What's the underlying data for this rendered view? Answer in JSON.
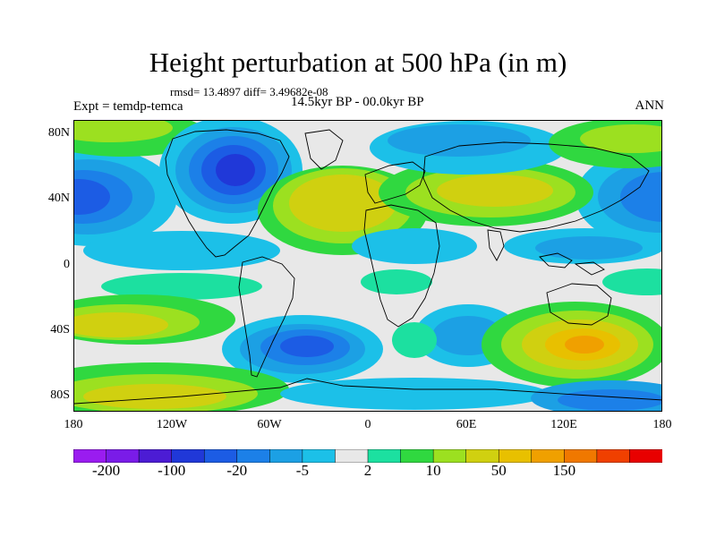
{
  "title": "Height perturbation at 500 hPa (in m)",
  "stats": "rmsd= 13.4897 diff= 3.49682e-08",
  "left_label": "Expt = temdp-temca",
  "center_label": "14.5kyr BP - 00.0kyr BP",
  "right_label": "ANN",
  "lat_labels": [
    "80N",
    "40N",
    "0",
    "40S",
    "80S"
  ],
  "lon_labels": [
    "180",
    "120W",
    "60W",
    "0",
    "60E",
    "120E",
    "180"
  ],
  "colorbar": {
    "colors": [
      "#9a1cf0",
      "#7a1ce8",
      "#4c1cd4",
      "#2038d8",
      "#1c5ce4",
      "#1c80e8",
      "#1ca0e4",
      "#1cc0e8",
      "#e8e8e8",
      "#1ce0a0",
      "#30d840",
      "#9ce020",
      "#d0d010",
      "#e8c000",
      "#f0a000",
      "#f07800",
      "#f04000",
      "#e80000"
    ],
    "tick_labels": [
      "-200",
      "-100",
      "-20",
      "-5",
      "2",
      "10",
      "50",
      "150"
    ]
  }
}
